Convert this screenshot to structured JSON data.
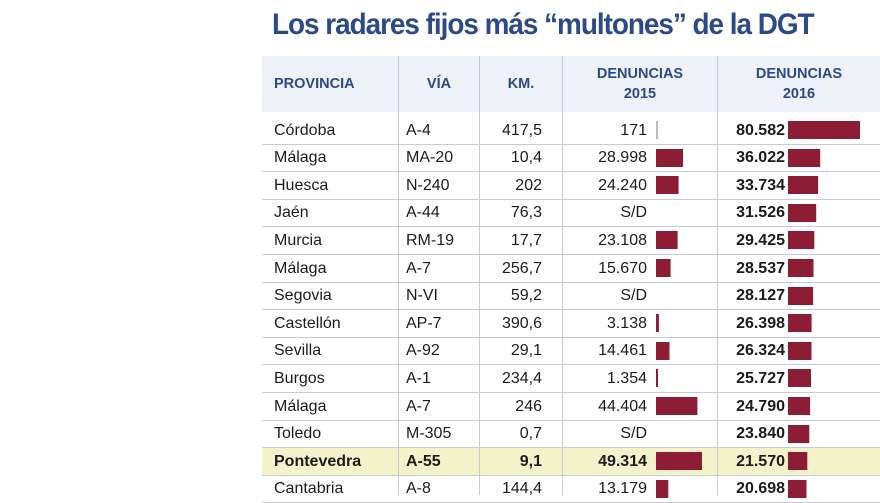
{
  "title": "Los radares fijos más “multones” de la DGT",
  "headers": {
    "provincia": "PROVINCIA",
    "via": "VÍA",
    "km": "KM.",
    "d2015": "DENUNCIAS\n2015",
    "d2016": "DENUNCIAS\n2016"
  },
  "rows": [
    {
      "provincia": "Córdoba",
      "via": "A-4",
      "km": "417,5",
      "d2015": "171",
      "d2016": "80.582"
    },
    {
      "provincia": "Málaga",
      "via": "MA-20",
      "km": "10,4",
      "d2015": "28.998",
      "d2016": "36.022"
    },
    {
      "provincia": "Huesca",
      "via": "N-240",
      "km": "202",
      "d2015": "24.240",
      "d2016": "33.734"
    },
    {
      "provincia": "Jaén",
      "via": "A-44",
      "km": "76,3",
      "d2015": "S/D",
      "d2016": "31.526"
    },
    {
      "provincia": "Murcia",
      "via": "RM-19",
      "km": "17,7",
      "d2015": "23.108",
      "d2016": "29.425"
    },
    {
      "provincia": "Málaga",
      "via": "A-7",
      "km": "256,7",
      "d2015": "15.670",
      "d2016": "28.537"
    },
    {
      "provincia": "Segovia",
      "via": "N-VI",
      "km": "59,2",
      "d2015": "S/D",
      "d2016": "28.127"
    },
    {
      "provincia": "Castellón",
      "via": "AP-7",
      "km": "390,6",
      "d2015": "3.138",
      "d2016": "26.398"
    },
    {
      "provincia": "Sevilla",
      "via": "A-92",
      "km": "29,1",
      "d2015": "14.461",
      "d2016": "26.324"
    },
    {
      "provincia": "Burgos",
      "via": "A-1",
      "km": "234,4",
      "d2015": "1.354",
      "d2016": "25.727"
    },
    {
      "provincia": "Málaga",
      "via": "A-7",
      "km": "246",
      "d2015": "44.404",
      "d2016": "24.790"
    },
    {
      "provincia": "Toledo",
      "via": "M-305",
      "km": "0,7",
      "d2015": "S/D",
      "d2016": "23.840"
    },
    {
      "provincia": "Pontevedra",
      "via": "A-55",
      "km": "9,1",
      "d2015": "49.314",
      "d2016": "21.570",
      "highlight": true
    },
    {
      "provincia": "Cantabria",
      "via": "A-8",
      "km": "144,4",
      "d2015": "13.179",
      "d2016": "20.698"
    }
  ],
  "chart_data": {
    "type": "table",
    "title": "Los radares fijos más “multones” de la DGT",
    "columns": [
      "PROVINCIA",
      "VÍA",
      "KM.",
      "DENUNCIAS 2015",
      "DENUNCIAS 2016"
    ],
    "series": [
      {
        "name": "DENUNCIAS 2015",
        "values": [
          171,
          28998,
          24240,
          null,
          23108,
          15670,
          null,
          3138,
          14461,
          1354,
          44404,
          null,
          49314,
          13179
        ]
      },
      {
        "name": "DENUNCIAS 2016",
        "values": [
          80582,
          36022,
          33734,
          31526,
          29425,
          28537,
          28127,
          26398,
          26324,
          25727,
          24790,
          23840,
          21570,
          20698
        ]
      }
    ],
    "highlighted_row": "Pontevedra",
    "colors": {
      "bar": "#8c1d34",
      "header_text": "#2c4a88",
      "highlight": "#f4f2c8"
    }
  }
}
